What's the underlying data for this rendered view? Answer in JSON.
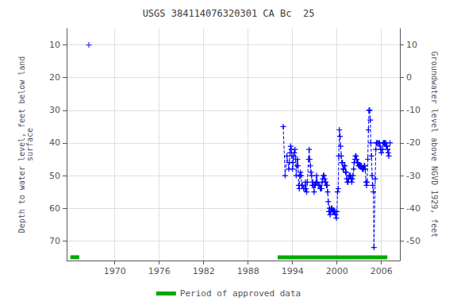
{
  "chart_data": {
    "type": "line",
    "title": "USGS 384114076320301 CA Bc  25",
    "ylabel": "Depth to water level, feet below land\nsurface",
    "y2label": "Groundwater level above NGVD 1929, feet",
    "xlim": [
      1963.5,
      2008.5
    ],
    "xticks": [
      1970,
      1976,
      1982,
      1988,
      1994,
      2000,
      2006
    ],
    "ylim": [
      76,
      5
    ],
    "yticks": [
      10,
      20,
      30,
      40,
      50,
      60,
      70
    ],
    "y2lim": [
      -56,
      15
    ],
    "y2ticks": [
      10,
      0,
      -10,
      -20,
      -30,
      -40,
      -50
    ],
    "grid": true,
    "legend": "bottom",
    "series": [
      {
        "type": "line",
        "color": "#0000ff",
        "marker": "plus",
        "line_style": "dashed",
        "x": [
          1992.75,
          1993.0,
          1993.25,
          1993.5,
          1993.58,
          1993.67,
          1993.75,
          1993.83,
          1993.92,
          1994.0,
          1994.08,
          1994.17,
          1994.25,
          1994.33,
          1994.42,
          1994.5,
          1994.58,
          1994.67,
          1994.75,
          1994.83,
          1994.92,
          1995.0,
          1995.08,
          1995.17,
          1995.25,
          1995.33,
          1995.5,
          1995.67,
          1995.75,
          1995.83,
          1995.92,
          1996.0,
          1996.17,
          1996.25,
          1996.33,
          1996.42,
          1996.5,
          1996.58,
          1996.67,
          1996.75,
          1996.83,
          1996.92,
          1997.0,
          1997.08,
          1997.17,
          1997.25,
          1997.33,
          1997.5,
          1997.67,
          1997.75,
          1997.83,
          1997.92,
          1998.0,
          1998.08,
          1998.17,
          1998.25,
          1998.33,
          1998.42,
          1998.5,
          1998.58,
          1998.67,
          1998.75,
          1998.83,
          1998.92,
          1999.0,
          1999.08,
          1999.17,
          1999.25,
          1999.33,
          1999.42,
          1999.5,
          1999.58,
          1999.67,
          1999.75,
          1999.83,
          1999.92,
          2000.0,
          2000.08,
          2000.17,
          2000.25,
          2000.33,
          2000.42,
          2000.5,
          2000.58,
          2000.67,
          2000.75,
          2000.83,
          2000.92,
          2001.0,
          2001.08,
          2001.17,
          2001.25,
          2001.33,
          2001.42,
          2001.5,
          2001.58,
          2001.67,
          2001.75,
          2001.83,
          2001.92,
          2002.0,
          2002.08,
          2002.17,
          2002.25,
          2002.33,
          2002.42,
          2002.5,
          2002.58,
          2002.67,
          2002.75,
          2002.83,
          2002.92,
          2003.0,
          2003.08,
          2003.17,
          2003.25,
          2003.33,
          2003.42,
          2003.5,
          2003.58,
          2003.67,
          2003.75,
          2003.83,
          2003.92,
          2004.0,
          2004.08,
          2004.17,
          2004.25,
          2004.33,
          2004.42,
          2004.5,
          2004.58,
          2004.67,
          2004.75,
          2004.83,
          2004.92,
          2005.0,
          2005.17,
          2005.25,
          2005.33,
          2005.42,
          2005.5,
          2005.67,
          2005.75,
          2005.83,
          2005.92,
          2006.0,
          2006.17,
          2006.25,
          2006.33,
          2006.42,
          2006.5,
          2006.58,
          2006.67,
          2006.75,
          2006.83,
          2006.92,
          2007.0,
          2007.17
        ],
        "values": [
          35,
          50,
          44,
          48,
          46,
          43,
          41,
          42,
          44,
          48,
          46,
          44,
          43,
          42,
          45,
          50,
          47,
          45,
          47,
          53,
          54,
          50,
          49,
          50,
          53,
          53,
          54,
          54,
          52,
          54,
          55,
          52,
          45,
          42,
          45,
          47,
          49,
          50,
          53,
          52,
          53,
          55,
          53,
          53,
          52,
          50,
          52,
          53,
          53,
          54,
          54,
          54,
          52,
          51,
          50,
          50,
          51,
          52,
          52,
          53,
          53,
          55,
          58,
          61,
          60,
          62,
          61,
          60,
          60,
          61,
          61,
          61,
          61,
          61,
          62,
          63,
          61,
          55,
          54,
          44,
          36,
          38,
          41,
          44,
          46,
          46,
          48,
          48,
          47,
          47,
          49,
          49,
          51,
          52,
          52,
          51,
          50,
          50,
          50,
          51,
          52,
          51,
          50,
          48,
          46,
          45,
          44,
          44,
          45,
          46,
          46,
          47,
          47,
          47,
          47,
          47,
          47,
          48,
          48,
          48,
          47,
          47,
          48,
          52,
          53,
          52,
          45,
          36,
          30,
          30,
          33,
          40,
          44,
          50,
          53,
          55,
          72,
          51,
          42,
          40,
          40,
          40,
          40,
          40,
          41,
          42,
          43,
          42,
          40,
          40,
          40,
          40,
          40,
          41,
          41,
          42,
          43,
          44,
          40
        ]
      },
      {
        "type": "line",
        "color": "#0000ff",
        "marker": "plus",
        "line_style": "none",
        "x": [
          1966.5
        ],
        "values": [
          10
        ]
      },
      {
        "type": "segment",
        "name": "Period of approved data",
        "color": "#00aa00",
        "x": [
          [
            1964.0,
            1965.2
          ],
          [
            1992.0,
            2006.8
          ]
        ],
        "values": [
          75,
          75
        ]
      }
    ]
  }
}
